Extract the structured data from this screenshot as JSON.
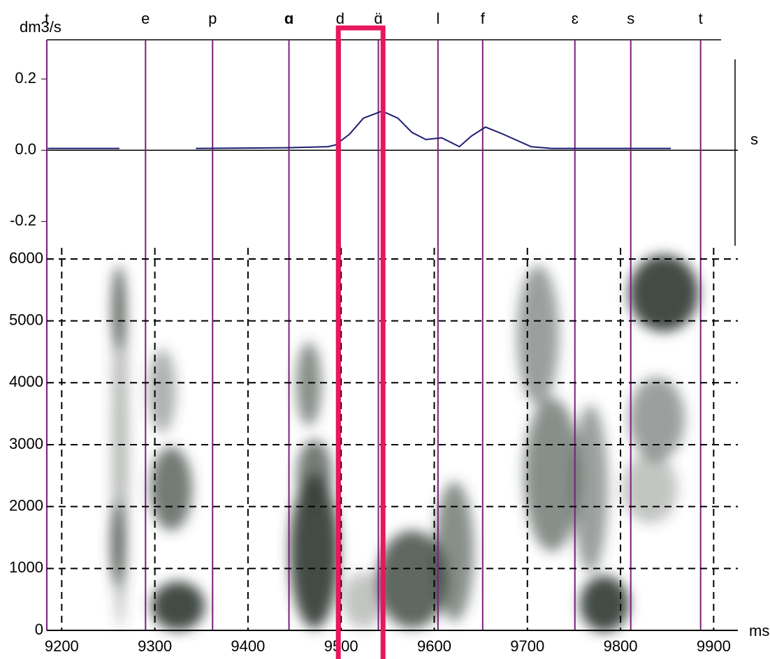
{
  "chart_data": [
    {
      "type": "line",
      "y_label": "dm3/s",
      "x_label": "s",
      "xlim": [
        9184,
        9926
      ],
      "ylim": [
        -0.27,
        0.31
      ],
      "yticks": [
        0.2,
        {
          "value": 0,
          "label": "0.0"
        },
        -0.2
      ],
      "segment_color": "#7b1f7b",
      "segments": [
        {
          "label": "t",
          "time": 9184
        },
        {
          "label": "e",
          "time": 9290
        },
        {
          "label": "p",
          "time": 9362
        },
        {
          "label": "ɑ",
          "time": 9444,
          "color": "#ff1aff"
        },
        {
          "label": "d",
          "time": 9499
        },
        {
          "label": "ɑ̈",
          "time": 9540
        },
        {
          "label": "l",
          "time": 9604
        },
        {
          "label": "f",
          "time": 9652
        },
        {
          "label": "ɛ",
          "time": 9751
        },
        {
          "label": "s",
          "time": 9811
        },
        {
          "label": "t",
          "time": 9886
        }
      ],
      "series": [
        {
          "color": "#1c1c70",
          "x": [
            9185,
            9262,
            9303,
            9344,
            9442,
            9486,
            9494,
            9509,
            9524,
            9544,
            9561,
            9576,
            9591,
            9608,
            9627,
            9640,
            9655,
            9674,
            9704,
            9726,
            9854
          ],
          "values": [
            0.005,
            0.005,
            null,
            0.005,
            0.007,
            0.01,
            0.015,
            0.045,
            0.09,
            0.11,
            0.09,
            0.05,
            0.03,
            0.035,
            0.01,
            0.04,
            0.065,
            0.045,
            0.01,
            0.005,
            0.005
          ]
        }
      ]
    },
    {
      "type": "spectrogram",
      "x_label": "ms",
      "xlim": [
        9184,
        9926
      ],
      "ylim": [
        0,
        6180
      ],
      "xticks": [
        9200,
        9300,
        9400,
        9500,
        9600,
        9700,
        9800,
        9900
      ],
      "yticks": [
        0,
        1000,
        2000,
        3000,
        4000,
        5000,
        6000
      ],
      "grid": true,
      "highlight": [
        9497,
        9545
      ],
      "highlight_color": "#e8175d"
    }
  ]
}
